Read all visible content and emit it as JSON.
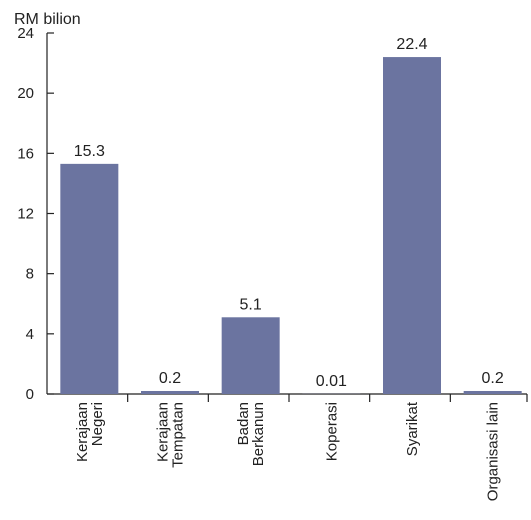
{
  "chart_data": {
    "type": "bar",
    "title": "",
    "ylabel": "RM bilion",
    "xlabel": "",
    "ylim": [
      0,
      24
    ],
    "yticks": [
      0,
      4,
      8,
      12,
      16,
      20,
      24
    ],
    "grid": false,
    "categories": [
      [
        "Kerajaan",
        "Negeri"
      ],
      [
        "Kerajaan",
        "Tempatan"
      ],
      [
        "Badan",
        "Berkanun"
      ],
      [
        "Koperasi"
      ],
      [
        "Syarikat"
      ],
      [
        "Organisasi lain"
      ]
    ],
    "values": [
      15.3,
      0.2,
      5.1,
      0.01,
      22.4,
      0.2
    ],
    "value_labels": [
      "15.3",
      "0.2",
      "5.1",
      "0.01",
      "22.4",
      "0.2"
    ],
    "bar_color": "#6b74a0",
    "axis_color": "#222222"
  }
}
